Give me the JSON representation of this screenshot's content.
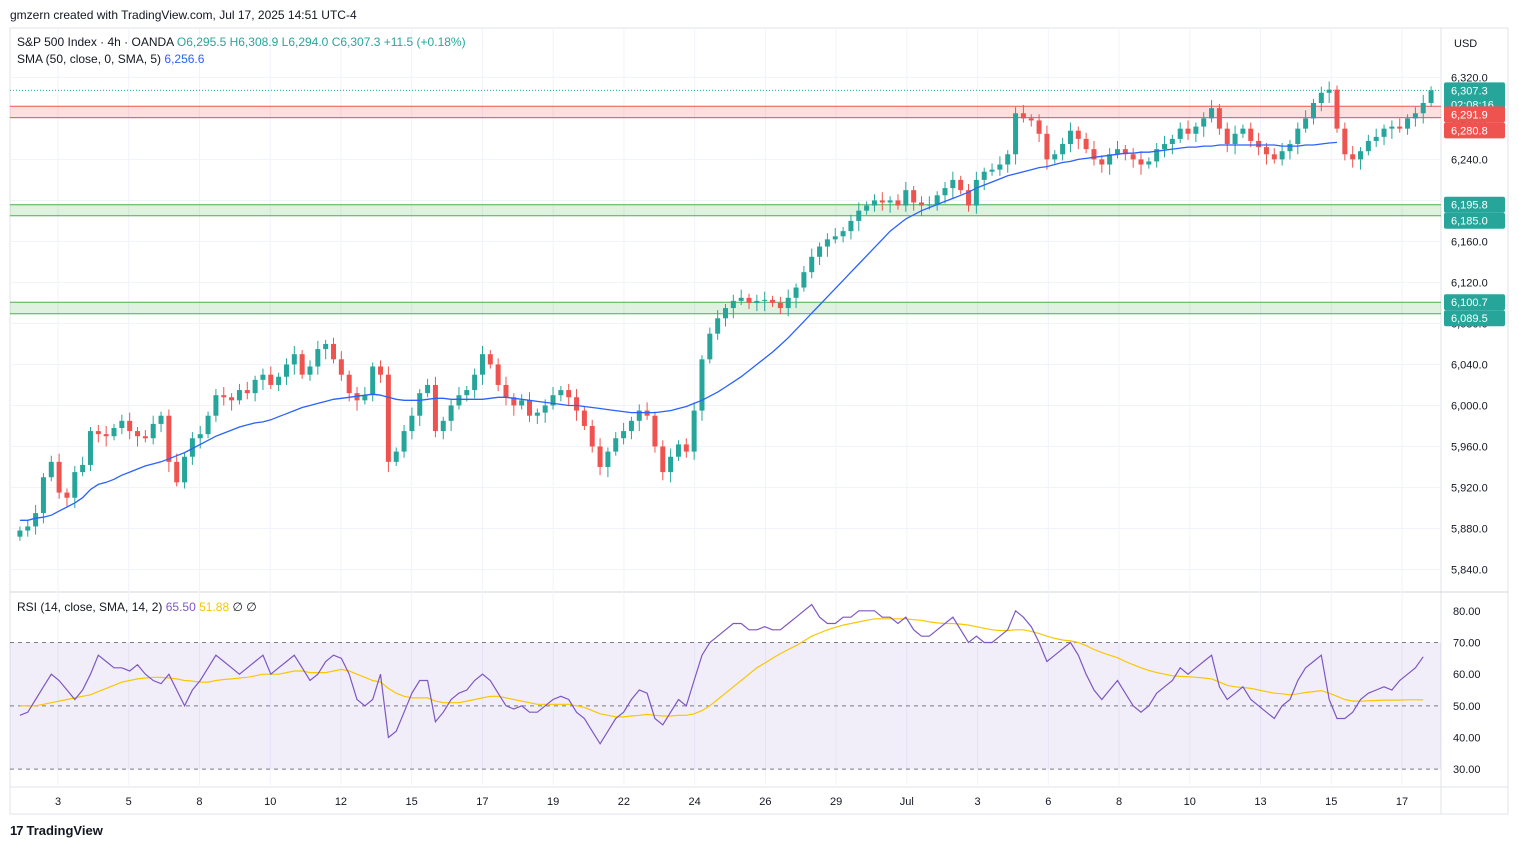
{
  "header": {
    "text": "gmzern created with TradingView.com, Jul 17, 2025 14:51 UTC-4"
  },
  "legend": {
    "symbol": "S&P 500 Index · 4h · OANDA",
    "open": "O6,295.5",
    "high": "H6,308.9",
    "low": "L6,294.0",
    "close": "C6,307.3",
    "change": "+11.5 (+0.18%)",
    "sma_label": "SMA (50, close, 0, SMA, 5)",
    "sma_value": "6,256.6",
    "rsi_label": "RSI (14, close, SMA, 14, 2)",
    "rsi_value": "65.50",
    "rsi_ma_value": "51.88",
    "rsi_extra": "∅ ∅"
  },
  "currency": "USD",
  "branding": {
    "logo_text": "TradingView"
  },
  "price_badges": [
    {
      "value": "6,307.3",
      "sub": "02:08:16",
      "color": "#26a69a"
    },
    {
      "value": "6,291.9",
      "color": "#ef5350"
    },
    {
      "value": "6,280.8",
      "color": "#ef5350"
    },
    {
      "value": "6,195.8",
      "color": "#26a69a"
    },
    {
      "value": "6,185.0",
      "color": "#26a69a"
    },
    {
      "value": "6,100.7",
      "color": "#26a69a"
    },
    {
      "value": "6,089.5",
      "color": "#26a69a"
    }
  ],
  "colors": {
    "up": "#26a69a",
    "down": "#ef5350",
    "sma": "#2962ff",
    "rsi": "#7e57c2",
    "rsi_ma": "#f9c700"
  },
  "chart_data": [
    {
      "type": "candlestick",
      "ylim": [
        5820,
        6335
      ],
      "y_ticks": [
        "5,840.0",
        "5,880.0",
        "5,920.0",
        "5,960.0",
        "6,000.0",
        "6,040.0",
        "6,080.0",
        "6,120.0",
        "6,160.0",
        "6,200.0",
        "6,240.0",
        "6,280.0",
        "6,320.0"
      ],
      "x_ticks": [
        "3",
        "5",
        "8",
        "10",
        "12",
        "15",
        "17",
        "19",
        "22",
        "24",
        "26",
        "29",
        "Jul",
        "3",
        "6",
        "8",
        "10",
        "13",
        "15",
        "17"
      ],
      "zones": [
        {
          "from": 6280.8,
          "to": 6291.9,
          "color": "#ef5350"
        },
        {
          "from": 6185.0,
          "to": 6195.8,
          "color": "#4caf50"
        },
        {
          "from": 6089.5,
          "to": 6100.7,
          "color": "#4caf50"
        }
      ],
      "last_price": 6307.3,
      "closes": [
        5878,
        5882,
        5895,
        5930,
        5945,
        5915,
        5910,
        5935,
        5942,
        5975,
        5972,
        5970,
        5978,
        5985,
        5975,
        5970,
        5968,
        5982,
        5990,
        5945,
        5925,
        5950,
        5968,
        5972,
        5990,
        6010,
        6008,
        6005,
        6015,
        6012,
        6025,
        6030,
        6020,
        6028,
        6040,
        6050,
        6030,
        6038,
        6055,
        6060,
        6045,
        6030,
        6012,
        6005,
        6010,
        6038,
        6030,
        5945,
        5955,
        5975,
        5990,
        6012,
        6020,
        5975,
        5985,
        6000,
        6010,
        6015,
        6030,
        6050,
        6040,
        6020,
        6008,
        6000,
        6005,
        5990,
        5993,
        6000,
        6010,
        6015,
        6008,
        5995,
        5980,
        5960,
        5940,
        5955,
        5968,
        5975,
        5985,
        5995,
        5990,
        5960,
        5935,
        5950,
        5962,
        5955,
        5995,
        6045,
        6070,
        6085,
        6095,
        6102,
        6105,
        6100,
        6102,
        6103,
        6100,
        6095,
        6105,
        6115,
        6130,
        6145,
        6155,
        6162,
        6165,
        6170,
        6180,
        6190,
        6195,
        6200,
        6198,
        6200,
        6195,
        6210,
        6198,
        6195,
        6196,
        6205,
        6212,
        6220,
        6210,
        6195,
        6220,
        6228,
        6230,
        6235,
        6245,
        6285,
        6280,
        6278,
        6265,
        6240,
        6245,
        6255,
        6268,
        6260,
        6250,
        6240,
        6235,
        6245,
        6250,
        6245,
        6240,
        6235,
        6238,
        6250,
        6255,
        6260,
        6270,
        6265,
        6272,
        6280,
        6290,
        6270,
        6255,
        6265,
        6270,
        6258,
        6252,
        6245,
        6240,
        6248,
        6255,
        6270,
        6280,
        6295,
        6305,
        6308,
        6270,
        6245,
        6240,
        6248,
        6258,
        6262,
        6270,
        6272,
        6270,
        6280,
        6285,
        6295,
        6307.3
      ],
      "sma": [
        5888,
        5888,
        5890,
        5891,
        5893,
        5897,
        5901,
        5905,
        5910,
        5918,
        5923,
        5925,
        5928,
        5932,
        5935,
        5938,
        5941,
        5943,
        5945,
        5948,
        5951,
        5954,
        5958,
        5962,
        5966,
        5970,
        5973,
        5976,
        5979,
        5981,
        5983,
        5984,
        5986,
        5989,
        5992,
        5995,
        5998,
        6000,
        6002,
        6004,
        6006,
        6007,
        6008,
        6009,
        6010,
        6011,
        6010,
        6008,
        6006,
        6005,
        6005,
        6005,
        6006,
        6007,
        6007,
        6006,
        6006,
        6006,
        6006,
        6006,
        6007,
        6008,
        6008,
        6007,
        6006,
        6005,
        6004,
        6003,
        6002,
        6001,
        6000,
        6000,
        5999,
        5998,
        5997,
        5996,
        5995,
        5994,
        5993,
        5993,
        5993,
        5993,
        5994,
        5995,
        5997,
        5999,
        6002,
        6005,
        6009,
        6013,
        6018,
        6023,
        6028,
        6034,
        6040,
        6046,
        6052,
        6059,
        6066,
        6074,
        6082,
        6090,
        6098,
        6106,
        6114,
        6122,
        6130,
        6138,
        6146,
        6154,
        6162,
        6170,
        6176,
        6182,
        6186,
        6190,
        6193,
        6196,
        6199,
        6202,
        6205,
        6208,
        6212,
        6215,
        6218,
        6221,
        6224,
        6226,
        6228,
        6230,
        6232,
        6233,
        6235,
        6237,
        6238,
        6240,
        6241,
        6242,
        6243,
        6244,
        6245,
        6246,
        6246,
        6247,
        6247,
        6248,
        6249,
        6250,
        6251,
        6252,
        6252,
        6253,
        6253,
        6254,
        6254,
        6254,
        6254,
        6254,
        6254,
        6254,
        6254,
        6253,
        6253,
        6253,
        6254,
        6254,
        6255,
        6256,
        6256.6
      ]
    },
    {
      "type": "line",
      "ylim": [
        25,
        85
      ],
      "y_ticks": [
        "30.00",
        "40.00",
        "50.00",
        "60.00",
        "70.00",
        "80.00"
      ],
      "levels": [
        70,
        50,
        30
      ],
      "rsi_ma_last": 51.88,
      "rsi": [
        47,
        48,
        52,
        56,
        60,
        58,
        55,
        52,
        55,
        60,
        66,
        64,
        62,
        62,
        61,
        63,
        60,
        58,
        57,
        60,
        55,
        50,
        55,
        58,
        62,
        66,
        64,
        62,
        60,
        62,
        64,
        66,
        60,
        62,
        64,
        66,
        62,
        58,
        60,
        64,
        66,
        65,
        60,
        52,
        50,
        52,
        60,
        40,
        42,
        48,
        54,
        58,
        58,
        45,
        48,
        52,
        54,
        55,
        58,
        60,
        58,
        54,
        50,
        49,
        50,
        48,
        48,
        50,
        52,
        53,
        52,
        48,
        46,
        42,
        38,
        42,
        46,
        48,
        52,
        55,
        54,
        46,
        44,
        48,
        52,
        50,
        58,
        66,
        70,
        72,
        74,
        76,
        76,
        74,
        74,
        75,
        74,
        74,
        76,
        78,
        80,
        82,
        78,
        76,
        76,
        78,
        78,
        80,
        80,
        80,
        78,
        78,
        76,
        78,
        74,
        72,
        72,
        74,
        76,
        78,
        74,
        70,
        72,
        70,
        70,
        72,
        74,
        80,
        78,
        75,
        70,
        64,
        66,
        68,
        70,
        66,
        60,
        55,
        52,
        55,
        58,
        54,
        50,
        48,
        50,
        54,
        56,
        58,
        62,
        60,
        62,
        64,
        66,
        56,
        52,
        54,
        56,
        52,
        50,
        48,
        46,
        50,
        52,
        58,
        62,
        64,
        66,
        52,
        46,
        46,
        48,
        52,
        54,
        55,
        56,
        55,
        58,
        60,
        62,
        65.5
      ],
      "rsi_ma": [
        50,
        50,
        50,
        50.5,
        51,
        51.5,
        52,
        52.5,
        53,
        53.5,
        54.5,
        55.5,
        56.5,
        57.5,
        58,
        58.5,
        58.8,
        59,
        59,
        58.8,
        58.5,
        58,
        57.8,
        57.5,
        57.5,
        58,
        58.3,
        58.5,
        58.8,
        59,
        59.5,
        60,
        60,
        60,
        60.5,
        61,
        61,
        60.5,
        60.5,
        60.5,
        61,
        61.5,
        61,
        60,
        59,
        58,
        57.5,
        55.5,
        54,
        53,
        52.5,
        52.5,
        52.5,
        51.5,
        51,
        51,
        51,
        51.5,
        52,
        52.5,
        53,
        53,
        52.5,
        52,
        51.5,
        51,
        50.5,
        50.5,
        50.5,
        50.5,
        50.5,
        50,
        49.5,
        48.5,
        47.5,
        47,
        46.5,
        46.5,
        46.8,
        47,
        47.3,
        47,
        46.8,
        46.8,
        47,
        47,
        47.5,
        48.5,
        50,
        52,
        54,
        56,
        58,
        60,
        62,
        63.5,
        65,
        66.5,
        67.8,
        69,
        70.5,
        72,
        73,
        74,
        74.8,
        75.5,
        76,
        76.5,
        77,
        77.5,
        77.5,
        77.5,
        77.5,
        77.5,
        77.2,
        77,
        76.5,
        76.2,
        76,
        76,
        75.8,
        75.5,
        75,
        74.5,
        74,
        73.8,
        73.8,
        74,
        74,
        73.5,
        72.8,
        72,
        71.3,
        70.8,
        70.5,
        70,
        69,
        67.8,
        66.8,
        66,
        65.2,
        64,
        63,
        62,
        61.2,
        60.5,
        60,
        59.5,
        59.3,
        59.2,
        59,
        58.8,
        58.5,
        57.5,
        56.5,
        56,
        55.8,
        55.5,
        55,
        54.5,
        54,
        53.8,
        53.5,
        53.8,
        54.2,
        54.5,
        54.8,
        54,
        53,
        52,
        51.5,
        51.5,
        51.6,
        51.7,
        51.8,
        51.8,
        51.8,
        51.9,
        51.9,
        51.88
      ]
    }
  ]
}
